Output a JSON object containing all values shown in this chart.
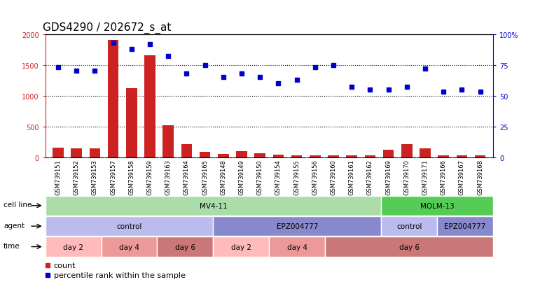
{
  "title": "GDS4290 / 202672_s_at",
  "samples": [
    "GSM739151",
    "GSM739152",
    "GSM739153",
    "GSM739157",
    "GSM739158",
    "GSM739159",
    "GSM739163",
    "GSM739164",
    "GSM739165",
    "GSM739148",
    "GSM739149",
    "GSM739150",
    "GSM739154",
    "GSM739155",
    "GSM739156",
    "GSM739160",
    "GSM739161",
    "GSM739162",
    "GSM739169",
    "GSM739170",
    "GSM739171",
    "GSM739166",
    "GSM739167",
    "GSM739168"
  ],
  "counts": [
    150,
    140,
    140,
    1900,
    1120,
    1650,
    520,
    210,
    90,
    55,
    100,
    60,
    40,
    30,
    30,
    30,
    25,
    25,
    120,
    210,
    140,
    30,
    30,
    30
  ],
  "percentile": [
    73,
    70,
    70,
    93,
    88,
    92,
    82,
    68,
    75,
    65,
    68,
    65,
    60,
    63,
    73,
    75,
    57,
    55,
    55,
    57,
    72,
    53,
    55,
    53
  ],
  "bar_color": "#cc2222",
  "dot_color": "#0000cc",
  "ylim_left": [
    0,
    2000
  ],
  "ylim_right": [
    0,
    100
  ],
  "yticks_left": [
    0,
    500,
    1000,
    1500,
    2000
  ],
  "yticks_right": [
    0,
    25,
    50,
    75,
    100
  ],
  "cell_line_spans": [
    {
      "label": "MV4-11",
      "start": 0,
      "end": 18,
      "color": "#aaddaa"
    },
    {
      "label": "MOLM-13",
      "start": 18,
      "end": 24,
      "color": "#55cc55"
    }
  ],
  "agent_spans": [
    {
      "label": "control",
      "start": 0,
      "end": 9,
      "color": "#bbbbee"
    },
    {
      "label": "EPZ004777",
      "start": 9,
      "end": 18,
      "color": "#8888cc"
    },
    {
      "label": "control",
      "start": 18,
      "end": 21,
      "color": "#bbbbee"
    },
    {
      "label": "EPZ004777",
      "start": 21,
      "end": 24,
      "color": "#8888cc"
    }
  ],
  "time_spans": [
    {
      "label": "day 2",
      "start": 0,
      "end": 3,
      "color": "#ffbbbb"
    },
    {
      "label": "day 4",
      "start": 3,
      "end": 6,
      "color": "#ee9999"
    },
    {
      "label": "day 6",
      "start": 6,
      "end": 9,
      "color": "#cc7777"
    },
    {
      "label": "day 2",
      "start": 9,
      "end": 12,
      "color": "#ffbbbb"
    },
    {
      "label": "day 4",
      "start": 12,
      "end": 15,
      "color": "#ee9999"
    },
    {
      "label": "day 6",
      "start": 15,
      "end": 24,
      "color": "#cc7777"
    }
  ],
  "row_labels": [
    "cell line",
    "agent",
    "time"
  ],
  "background_color": "#ffffff",
  "xtick_bg_color": "#cccccc",
  "title_fontsize": 11,
  "tick_fontsize": 7,
  "ann_fontsize": 7.5,
  "legend_fontsize": 8
}
